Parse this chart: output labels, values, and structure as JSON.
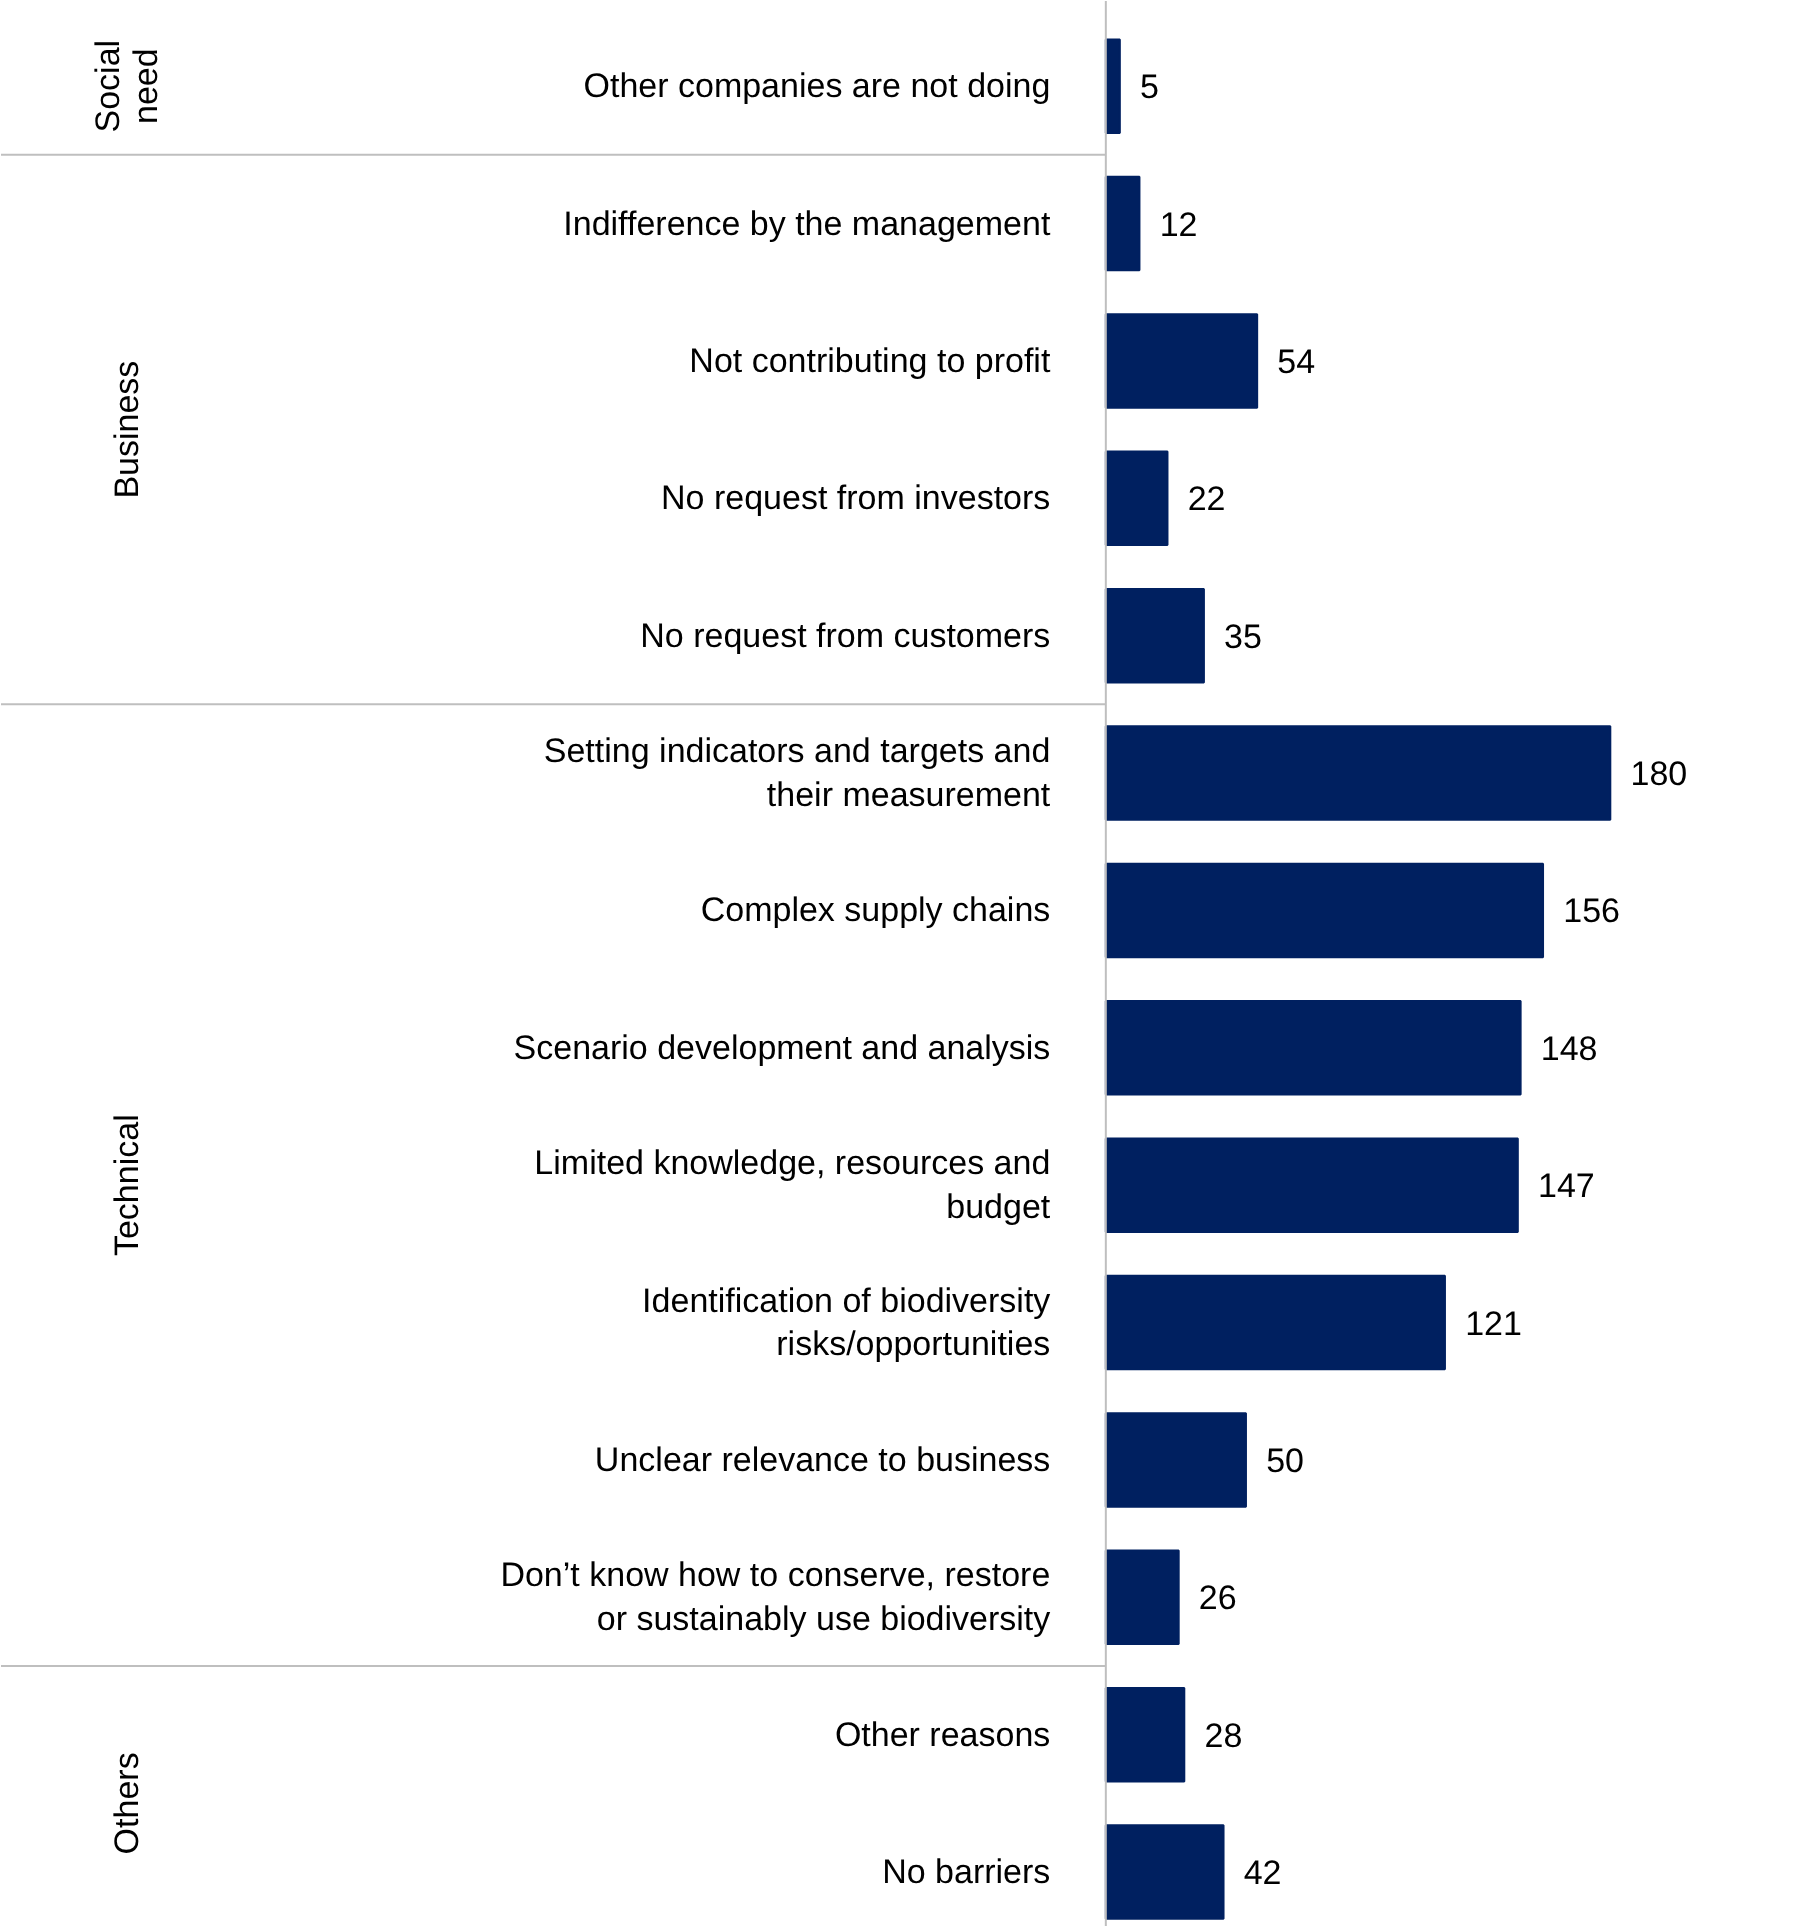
{
  "chart_data": {
    "type": "bar",
    "orientation": "horizontal",
    "data_labels": true,
    "categories": [
      "Other companies are not doing",
      "Indifference by the management",
      "Not contributing to profit",
      "No request from investors",
      "No request from customers",
      "Setting indicators and targets and their measurement",
      "Complex supply chains",
      "Scenario development and analysis",
      "Limited knowledge, resources and budget",
      "Identification of biodiversity risks/opportunities",
      "Unclear relevance to business",
      "Don’t know how to conserve, restore or sustainably use biodiversity",
      "Other reasons",
      "No barriers"
    ],
    "values": [
      5,
      12,
      54,
      22,
      35,
      180,
      156,
      148,
      147,
      121,
      50,
      26,
      28,
      42
    ],
    "color": "#002060",
    "annotations": [
      "Social need",
      "Business",
      "Technical",
      "Others"
    ]
  }
}
